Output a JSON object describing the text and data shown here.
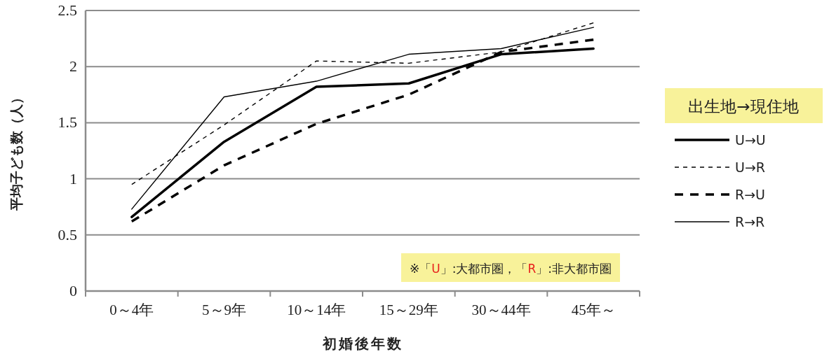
{
  "chart_data": {
    "type": "line",
    "xlabel": "初婚後年数",
    "ylabel": "平均子ども数（人）",
    "legend_title": "出生地→現住地",
    "categories": [
      "0～4年",
      "5～9年",
      "10～14年",
      "15～29年",
      "30～44年",
      "45年～"
    ],
    "series": [
      {
        "name": "U→U",
        "color": "#000000",
        "line_style": "solid",
        "values": [
          0.66,
          1.33,
          1.82,
          1.85,
          2.11,
          2.16
        ]
      },
      {
        "name": "U→R",
        "color": "#000000",
        "line_style": "dashed",
        "values": [
          0.95,
          1.48,
          2.05,
          2.03,
          2.13,
          2.39
        ]
      },
      {
        "name": "R→U",
        "color": "#000000",
        "line_style": "dashed",
        "values": [
          0.62,
          1.12,
          1.49,
          1.75,
          2.13,
          2.24
        ]
      },
      {
        "name": "R→R",
        "color": "#000000",
        "line_style": "solid",
        "values": [
          0.73,
          1.73,
          1.87,
          2.11,
          2.16,
          2.35
        ]
      }
    ],
    "ylim": [
      0,
      2.5
    ],
    "yticks": [
      0,
      0.5,
      1,
      1.5,
      2,
      2.5
    ],
    "grid": "y",
    "legend": "right",
    "marker": "none",
    "annotations": [
      "※「U」:大都市圏，「R」:非大都市圏"
    ]
  }
}
